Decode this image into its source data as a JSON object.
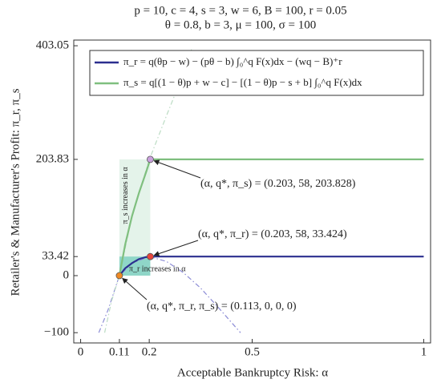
{
  "chart_data": {
    "type": "line",
    "title": "p = 10, c = 4, s = 3, w = 6, B = 100, r = 0.05",
    "subtitle": "θ = 0.8, b = 3, μ = 100, σ = 100",
    "xlabel": "Acceptable Bankruptcy Risk: α",
    "ylabel": "Retailer's & Manufacturer's Profit: π_r, π_s",
    "xlim": [
      -0.02,
      1.02
    ],
    "ylim": [
      -118,
      413
    ],
    "xticks": [
      0,
      {
        "value": 0.113,
        "label": "0.11"
      },
      0.2,
      0.5,
      1
    ],
    "yticks": [
      {
        "value": -100,
        "label": "−100"
      },
      0,
      33.42,
      203.83,
      403.05
    ],
    "series": [
      {
        "name": "π_r = q(θp − w) − (pθ − b) ∫₀^q F(x)dx − (wq − B)⁺r",
        "color": "#2b2f8f",
        "style": "solid",
        "x": [
          0.113,
          0.13,
          0.15,
          0.17,
          0.19,
          0.203,
          1
        ],
        "values": [
          0,
          13,
          22,
          29,
          32.5,
          33.424,
          33.424
        ]
      },
      {
        "name": "π_s = q[(1 − θ)p + w − c] − [(1 − θ)p − s + b] ∫₀^q F(x)dx",
        "color": "#7fbf7f",
        "style": "solid",
        "x": [
          0.113,
          0.13,
          0.15,
          0.17,
          0.19,
          0.203,
          1
        ],
        "values": [
          0,
          55,
          105,
          145,
          180,
          203.828,
          203.828
        ]
      },
      {
        "color": "#8c8cd6",
        "style": "dashdot",
        "x": [
          0.053,
          0.08,
          0.113,
          0.15,
          0.2,
          0.25,
          0.3,
          0.35,
          0.4,
          0.466
        ],
        "values": [
          -100,
          -60,
          0,
          22,
          33.4,
          25,
          5,
          -22,
          -55,
          -100
        ]
      },
      {
        "color": "#bcdcc4",
        "style": "dashdot",
        "x": [
          0.07,
          0.09,
          0.113,
          0.15,
          0.2,
          0.25,
          0.3,
          0.325
        ],
        "values": [
          -100,
          -45,
          0,
          105,
          203,
          280,
          355,
          400
        ]
      }
    ],
    "regions": [
      {
        "x": [
          0.113,
          0.203
        ],
        "y": [
          0,
          203.828
        ],
        "color": "#e4f3ea",
        "label": "π_s increases in α"
      },
      {
        "x": [
          0.113,
          0.203
        ],
        "y": [
          0,
          33.424
        ],
        "color": "#8fd6c8",
        "label": "π_r increases in α"
      }
    ],
    "points": [
      {
        "x": 0.203,
        "y": 203.828,
        "color": "#c9a0dc",
        "label": "(α, q*, π_s) = (0.203, 58, 203.828)"
      },
      {
        "x": 0.203,
        "y": 33.424,
        "color": "#e8453c",
        "label": "(α, q*, π_r) = (0.203, 58, 33.424)"
      },
      {
        "x": 0.113,
        "y": 0,
        "color": "#f08a24",
        "label": "(α, q*, π_r, π_s) = (0.113, 0, 0, 0)"
      }
    ]
  }
}
